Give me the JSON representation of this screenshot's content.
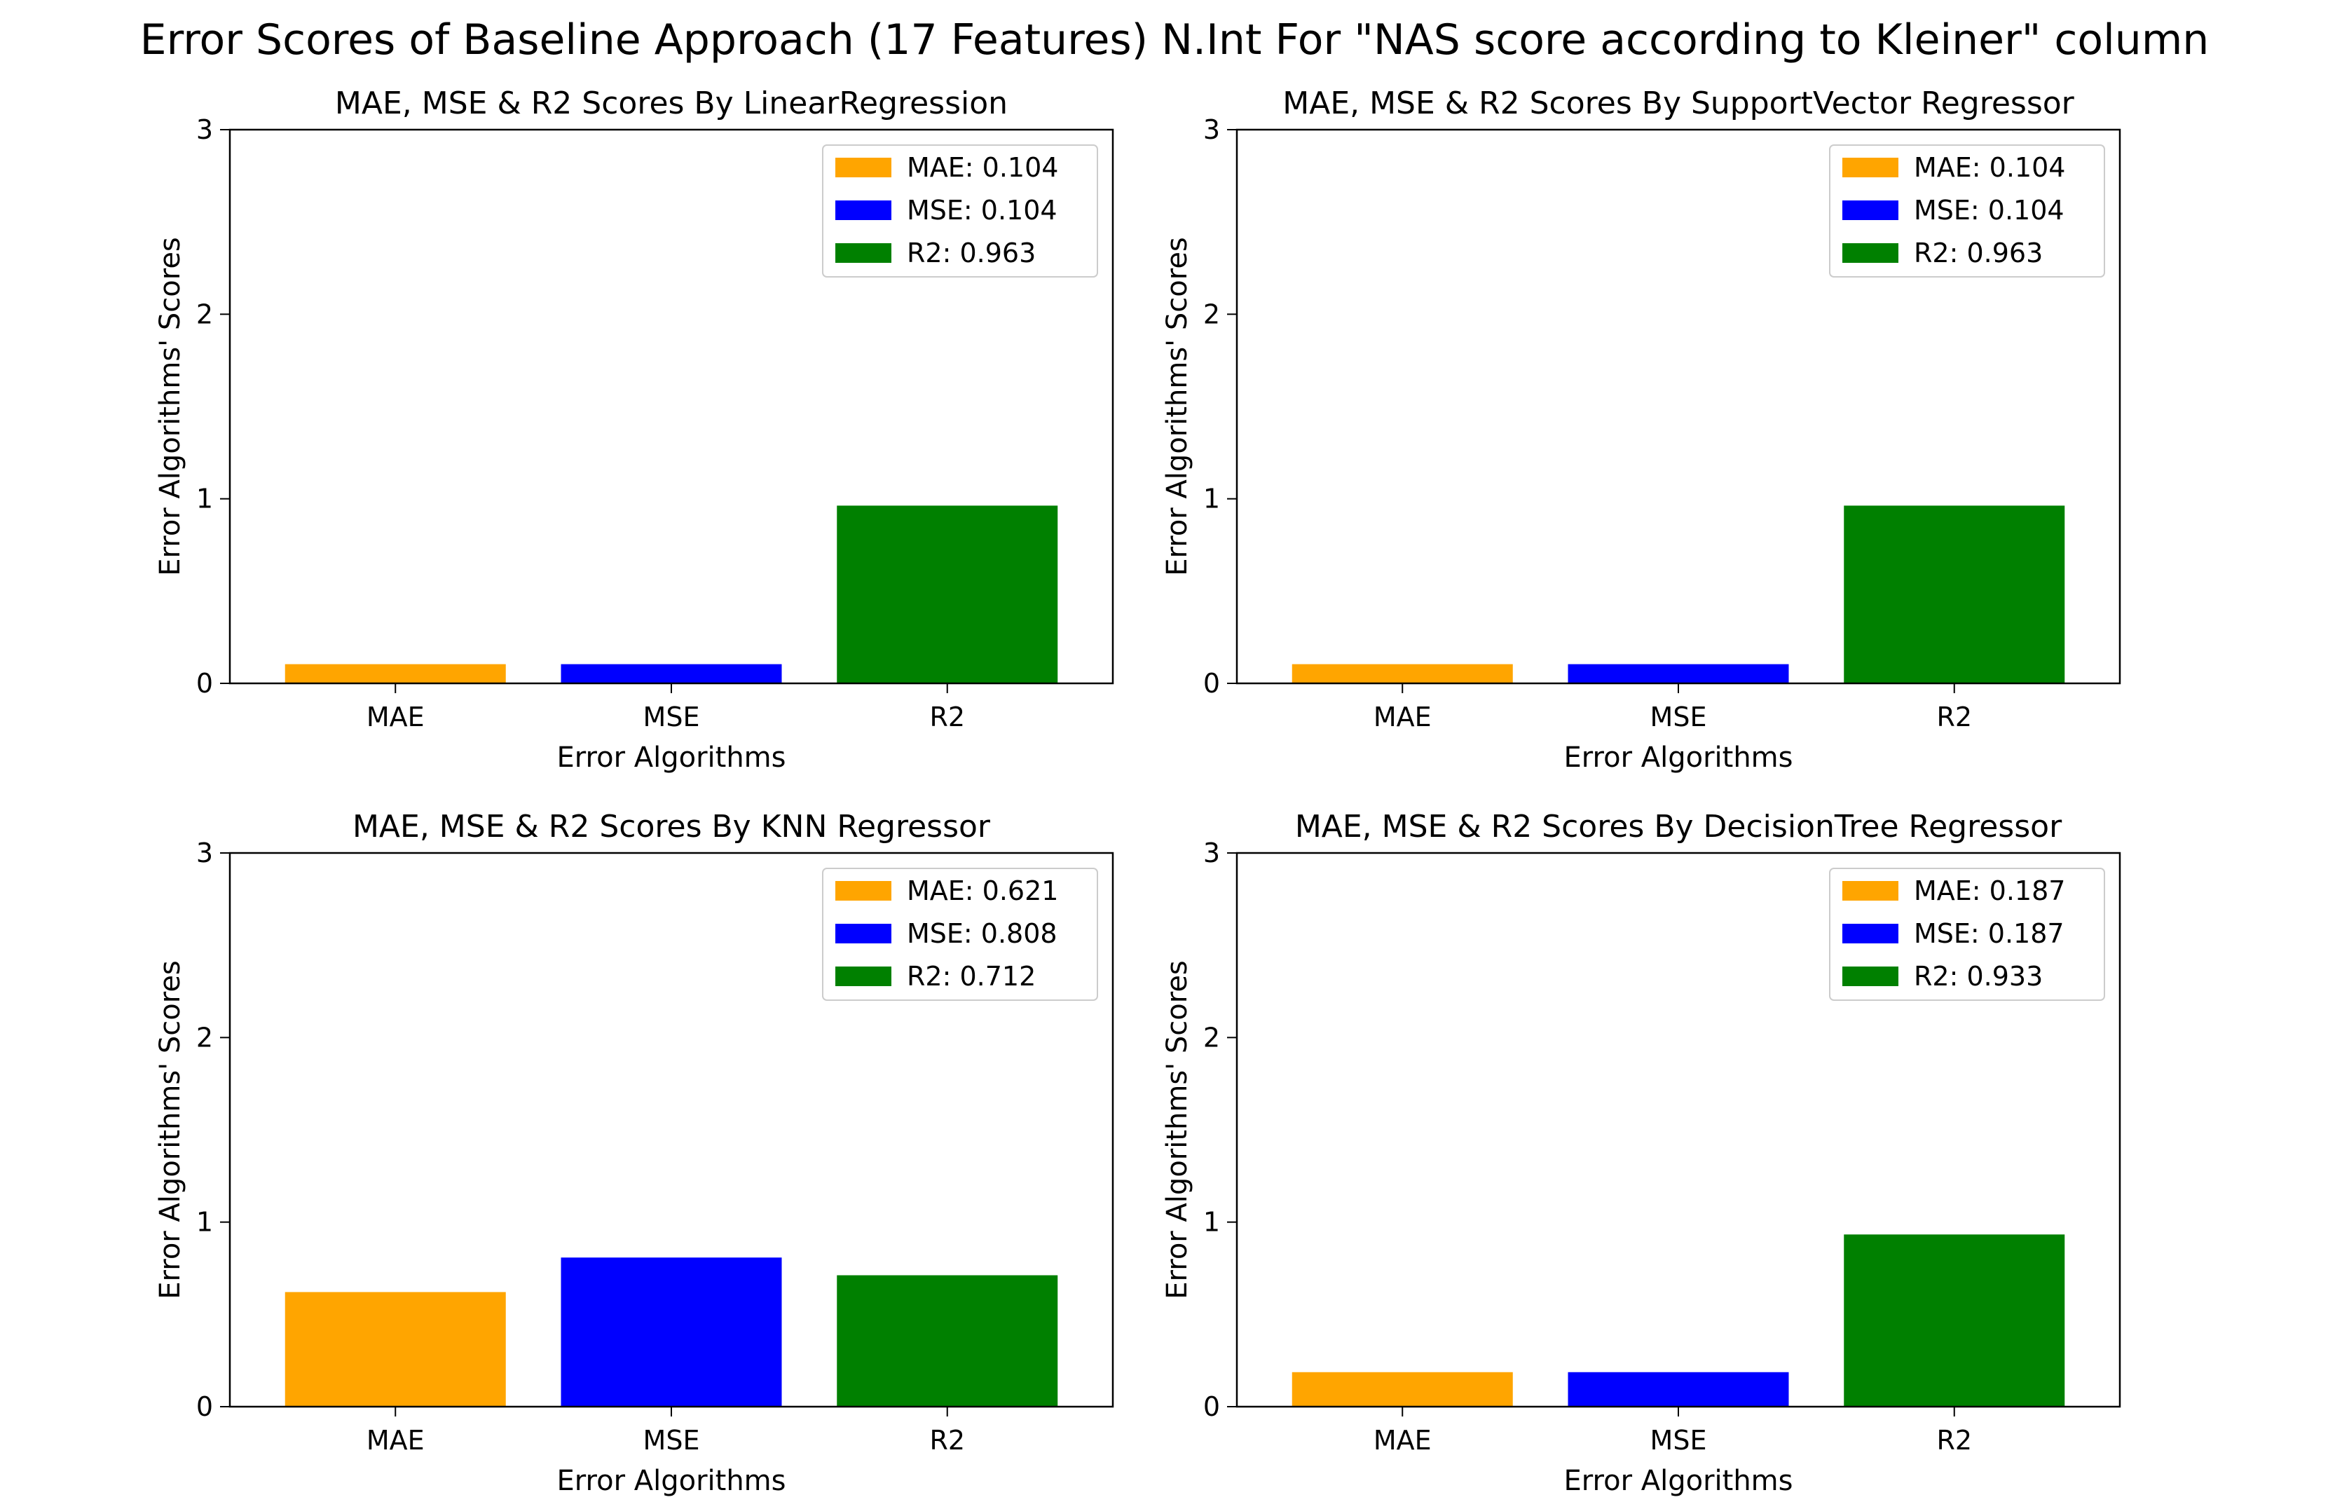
{
  "suptitle": "Error Scores of Baseline Approach (17 Features) N.Int For \"NAS score according to Kleiner\" column",
  "chart_data": [
    {
      "type": "bar",
      "title": "MAE, MSE & R2 Scores By LinearRegression",
      "xlabel": "Error Algorithms",
      "ylabel": "Error Algorithms' Scores",
      "categories": [
        "MAE",
        "MSE",
        "R2"
      ],
      "values": [
        0.104,
        0.104,
        0.963
      ],
      "colors": [
        "#ffa500",
        "#0000ff",
        "#008000"
      ],
      "legend": [
        "MAE: 0.104",
        "MSE: 0.104",
        "R2: 0.963"
      ],
      "legend_position": "top-right",
      "ylim": [
        0,
        3
      ],
      "yticks": [
        "0",
        "1",
        "2",
        "3"
      ]
    },
    {
      "type": "bar",
      "title": "MAE, MSE & R2 Scores By SupportVector Regressor",
      "xlabel": "Error Algorithms",
      "ylabel": "Error Algorithms' Scores",
      "categories": [
        "MAE",
        "MSE",
        "R2"
      ],
      "values": [
        0.104,
        0.104,
        0.963
      ],
      "colors": [
        "#ffa500",
        "#0000ff",
        "#008000"
      ],
      "legend": [
        "MAE: 0.104",
        "MSE: 0.104",
        "R2: 0.963"
      ],
      "legend_position": "top-right",
      "ylim": [
        0,
        3
      ],
      "yticks": [
        "0",
        "1",
        "2",
        "3"
      ]
    },
    {
      "type": "bar",
      "title": "MAE, MSE & R2 Scores By KNN Regressor",
      "xlabel": "Error Algorithms",
      "ylabel": "Error Algorithms' Scores",
      "categories": [
        "MAE",
        "MSE",
        "R2"
      ],
      "values": [
        0.621,
        0.808,
        0.712
      ],
      "colors": [
        "#ffa500",
        "#0000ff",
        "#008000"
      ],
      "legend": [
        "MAE: 0.621",
        "MSE: 0.808",
        "R2: 0.712"
      ],
      "legend_position": "top-right",
      "ylim": [
        0,
        3
      ],
      "yticks": [
        "0",
        "1",
        "2",
        "3"
      ]
    },
    {
      "type": "bar",
      "title": "MAE, MSE & R2 Scores By DecisionTree Regressor",
      "xlabel": "Error Algorithms",
      "ylabel": "Error Algorithms' Scores",
      "categories": [
        "MAE",
        "MSE",
        "R2"
      ],
      "values": [
        0.187,
        0.187,
        0.933
      ],
      "colors": [
        "#ffa500",
        "#0000ff",
        "#008000"
      ],
      "legend": [
        "MAE: 0.187",
        "MSE: 0.187",
        "R2: 0.933"
      ],
      "legend_position": "top-right",
      "ylim": [
        0,
        3
      ],
      "yticks": [
        "0",
        "1",
        "2",
        "3"
      ]
    }
  ]
}
